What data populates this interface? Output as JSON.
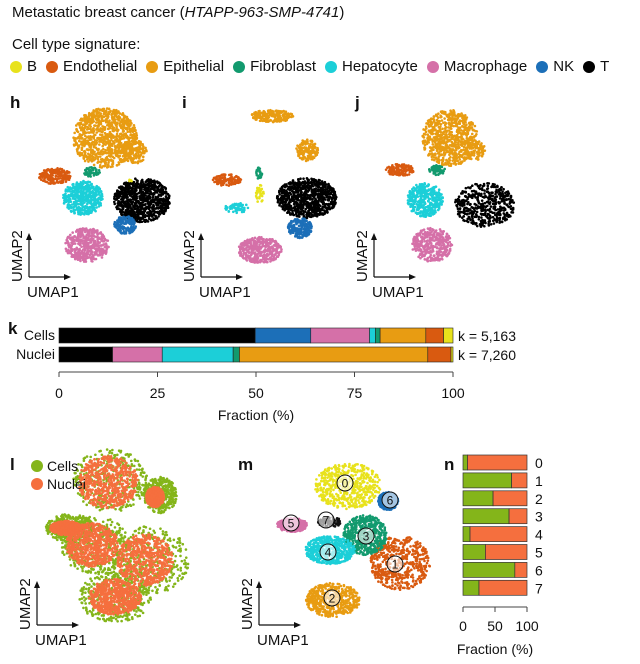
{
  "title": {
    "prefix": "Metastatic breast cancer (",
    "sample": "HTAPP-963-SMP-4741",
    "suffix": ")"
  },
  "signature_label": "Cell type signature:",
  "cell_types": [
    {
      "name": "B",
      "color": "#e8e21c"
    },
    {
      "name": "Endothelial",
      "color": "#d95a10"
    },
    {
      "name": "Epithelial",
      "color": "#e89c12"
    },
    {
      "name": "Fibroblast",
      "color": "#129a6e"
    },
    {
      "name": "Hepatocyte",
      "color": "#1ccfd8"
    },
    {
      "name": "Macrophage",
      "color": "#d570a8"
    },
    {
      "name": "NK",
      "color": "#1c6fb8"
    },
    {
      "name": "T",
      "color": "#000000"
    }
  ],
  "panels": {
    "h": "h",
    "i": "i",
    "j": "j",
    "k": "k",
    "l": "l",
    "m": "m",
    "n": "n"
  },
  "axes": {
    "umap1": "UMAP1",
    "umap2": "UMAP2"
  },
  "l_legend": [
    {
      "name": "Cells",
      "color": "#84b51a"
    },
    {
      "name": "Nuclei",
      "color": "#f56f3e"
    }
  ],
  "chart_data": [
    {
      "type": "bar",
      "orientation": "horizontal-stacked",
      "panel": "k",
      "categories": [
        "Cells",
        "Nuclei"
      ],
      "annotations": [
        "k = 5,163",
        "k = 7,260"
      ],
      "series": [
        {
          "name": "T",
          "values": [
            49.8,
            13.6
          ]
        },
        {
          "name": "NK",
          "values": [
            14.1,
            0
          ]
        },
        {
          "name": "Macrophage",
          "values": [
            14.9,
            12.6
          ]
        },
        {
          "name": "Hepatocyte",
          "values": [
            1.5,
            18.0
          ]
        },
        {
          "name": "Fibroblast",
          "values": [
            1.2,
            1.6
          ]
        },
        {
          "name": "Epithelial",
          "values": [
            11.6,
            47.8
          ]
        },
        {
          "name": "Endothelial",
          "values": [
            4.5,
            5.9
          ]
        },
        {
          "name": "B",
          "values": [
            2.4,
            0.5
          ]
        }
      ],
      "xlabel": "Fraction (%)",
      "xticks": [
        "0",
        "25",
        "50",
        "75",
        "100"
      ],
      "xlim": [
        0,
        100
      ]
    },
    {
      "type": "bar",
      "orientation": "horizontal-stacked",
      "panel": "n",
      "categories": [
        "0",
        "1",
        "2",
        "3",
        "4",
        "5",
        "6",
        "7"
      ],
      "series": [
        {
          "name": "Cells",
          "values": [
            7,
            76,
            47,
            72,
            11,
            35,
            81,
            25
          ]
        },
        {
          "name": "Nuclei",
          "values": [
            93,
            24,
            53,
            28,
            89,
            65,
            19,
            75
          ]
        }
      ],
      "xlabel": "Fraction (%)",
      "xticks": [
        "0",
        "50",
        "100"
      ],
      "xlim": [
        0,
        100
      ]
    }
  ],
  "clusters_m": [
    "0",
    "1",
    "2",
    "3",
    "4",
    "5",
    "6",
    "7"
  ]
}
